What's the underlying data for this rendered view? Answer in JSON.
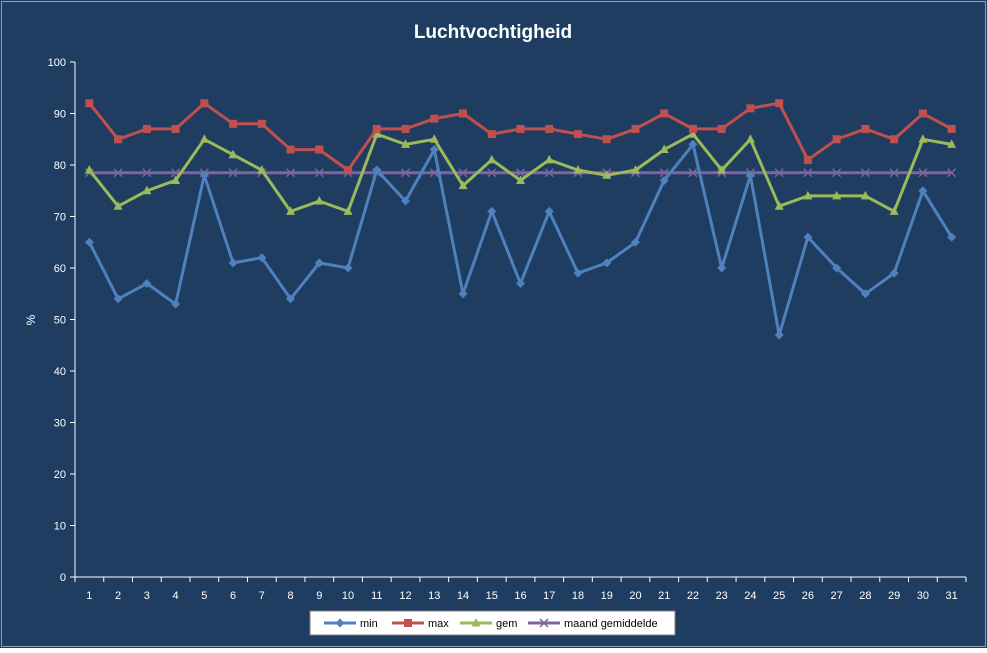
{
  "chart_data": {
    "type": "line",
    "title": "Luchtvochtigheid",
    "xlabel": "",
    "ylabel": "%",
    "ylim": [
      0,
      100
    ],
    "yticks": [
      0,
      10,
      20,
      30,
      40,
      50,
      60,
      70,
      80,
      90,
      100
    ],
    "grid": false,
    "legend": "bottom",
    "x": [
      1,
      2,
      3,
      4,
      5,
      6,
      7,
      8,
      9,
      10,
      11,
      12,
      13,
      14,
      15,
      16,
      17,
      18,
      19,
      20,
      21,
      22,
      23,
      24,
      25,
      26,
      27,
      28,
      29,
      30,
      31
    ],
    "series": [
      {
        "name": "min",
        "color": "#4f81bd",
        "marker": "diamond",
        "values": [
          65,
          54,
          57,
          53,
          78,
          61,
          62,
          54,
          61,
          60,
          79,
          73,
          83,
          55,
          71,
          57,
          71,
          59,
          61,
          65,
          77,
          84,
          60,
          78,
          47,
          66,
          60,
          55,
          59,
          75,
          66
        ]
      },
      {
        "name": "max",
        "color": "#c0504d",
        "marker": "square",
        "values": [
          92,
          85,
          87,
          87,
          92,
          88,
          88,
          83,
          83,
          79,
          87,
          87,
          89,
          90,
          86,
          87,
          87,
          86,
          85,
          87,
          90,
          87,
          87,
          91,
          92,
          81,
          85,
          87,
          85,
          90,
          87
        ]
      },
      {
        "name": "gem",
        "color": "#9bbb59",
        "marker": "triangle",
        "values": [
          79,
          72,
          75,
          77,
          85,
          82,
          79,
          71,
          73,
          71,
          86,
          84,
          85,
          76,
          81,
          77,
          81,
          79,
          78,
          79,
          83,
          86,
          79,
          85,
          72,
          74,
          74,
          74,
          71,
          85,
          84
        ]
      },
      {
        "name": "maand gemiddelde",
        "color": "#8064a2",
        "marker": "x",
        "values": [
          78.5,
          78.5,
          78.5,
          78.5,
          78.5,
          78.5,
          78.5,
          78.5,
          78.5,
          78.5,
          78.5,
          78.5,
          78.5,
          78.5,
          78.5,
          78.5,
          78.5,
          78.5,
          78.5,
          78.5,
          78.5,
          78.5,
          78.5,
          78.5,
          78.5,
          78.5,
          78.5,
          78.5,
          78.5,
          78.5,
          78.5
        ]
      }
    ],
    "colors": {
      "background": "#1f3d61",
      "axis": "#ffffff",
      "text": "#ffffff",
      "legend_bg": "#ffffff",
      "legend_text": "#000000"
    }
  }
}
